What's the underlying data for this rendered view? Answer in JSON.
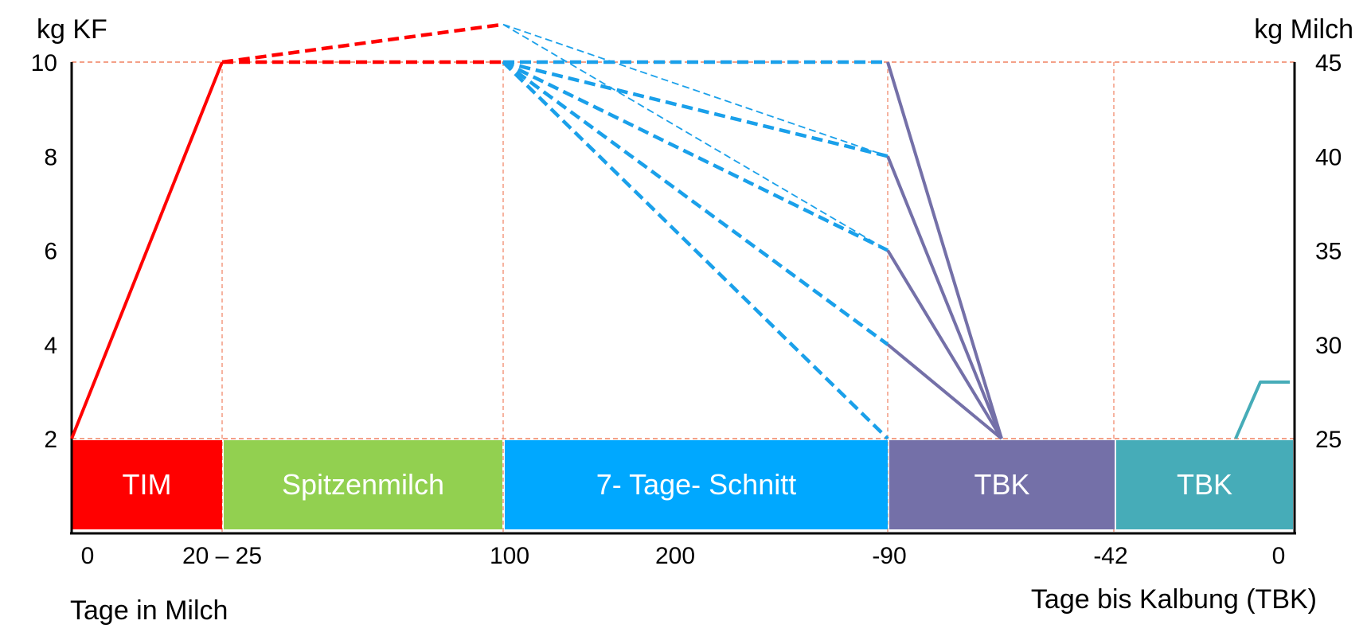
{
  "chart_data": {
    "type": "line",
    "left_axis": {
      "label": "kg KF",
      "ticks": [
        10,
        8,
        6,
        4,
        2
      ],
      "ylim": [
        0,
        10
      ]
    },
    "right_axis": {
      "label": "kg Milch",
      "ticks": [
        45,
        40,
        35,
        30,
        25
      ],
      "ylim": [
        20,
        45
      ]
    },
    "x_axis": {
      "label_left": "Tage in Milch",
      "label_right": "Tage bis Kalbung (TBK)",
      "ticks": [
        "0",
        "20 – 25",
        "100",
        "200",
        "-90",
        "-42",
        "0"
      ]
    },
    "phases": [
      {
        "label": "TIM",
        "color": "#ff0000"
      },
      {
        "label": "Spitzenmilch",
        "color": "#92d050"
      },
      {
        "label": "7- Tage- Schnitt",
        "color": "#00a8ff"
      },
      {
        "label": "TBK",
        "color": "#7470a8"
      },
      {
        "label": "TBK",
        "color": "#46acb8"
      }
    ],
    "series": [
      {
        "color": "#ff0000",
        "style": "solid",
        "points": [
          [
            "0",
            2
          ],
          [
            "20 – 25",
            10
          ]
        ]
      },
      {
        "color": "#ff0000",
        "style": "dashed",
        "points": [
          [
            "20 – 25",
            10
          ],
          [
            "100",
            10
          ]
        ]
      },
      {
        "color": "#ff0000",
        "style": "dashed",
        "points": [
          [
            "20 – 25",
            10
          ],
          [
            "100",
            10.8
          ]
        ]
      },
      {
        "color": "#1aa0ea",
        "style": "dashed",
        "points": [
          [
            "100",
            10
          ],
          [
            "-90",
            10
          ]
        ]
      },
      {
        "color": "#1aa0ea",
        "style": "dashed",
        "points": [
          [
            "100",
            10
          ],
          [
            "-90",
            8
          ]
        ]
      },
      {
        "color": "#1aa0ea",
        "style": "dashed",
        "points": [
          [
            "100",
            10
          ],
          [
            "-90",
            6
          ]
        ]
      },
      {
        "color": "#1aa0ea",
        "style": "dashed",
        "points": [
          [
            "100",
            10
          ],
          [
            "-90",
            4
          ]
        ]
      },
      {
        "color": "#1aa0ea",
        "style": "dashed",
        "points": [
          [
            "100",
            10
          ],
          [
            "-90",
            2
          ]
        ]
      },
      {
        "color": "#1aa0ea",
        "style": "dashed-thin",
        "points": [
          [
            "100",
            10.8
          ],
          [
            "-90",
            8
          ]
        ]
      },
      {
        "color": "#1aa0ea",
        "style": "dashed-thin",
        "points": [
          [
            "100",
            10.8
          ],
          [
            "-90",
            6
          ]
        ]
      },
      {
        "color": "#7470a8",
        "style": "solid",
        "points": [
          [
            "-90",
            10
          ],
          [
            "-66",
            2
          ]
        ]
      },
      {
        "color": "#7470a8",
        "style": "solid",
        "points": [
          [
            "-90",
            8
          ],
          [
            "-66",
            2
          ]
        ]
      },
      {
        "color": "#7470a8",
        "style": "solid",
        "points": [
          [
            "-90",
            6
          ],
          [
            "-66",
            2
          ]
        ]
      },
      {
        "color": "#7470a8",
        "style": "solid",
        "points": [
          [
            "-90",
            4
          ],
          [
            "-66",
            2
          ]
        ]
      },
      {
        "color": "#46acb8",
        "style": "solid",
        "points": [
          [
            "-5",
            2
          ],
          [
            "0",
            3.2
          ],
          [
            "0",
            3.2
          ]
        ]
      }
    ],
    "grid": {
      "horizontal": [
        10,
        2
      ],
      "vertical": [
        "20 – 25",
        "100",
        "-90",
        "-42"
      ],
      "color": "#f08060"
    }
  }
}
